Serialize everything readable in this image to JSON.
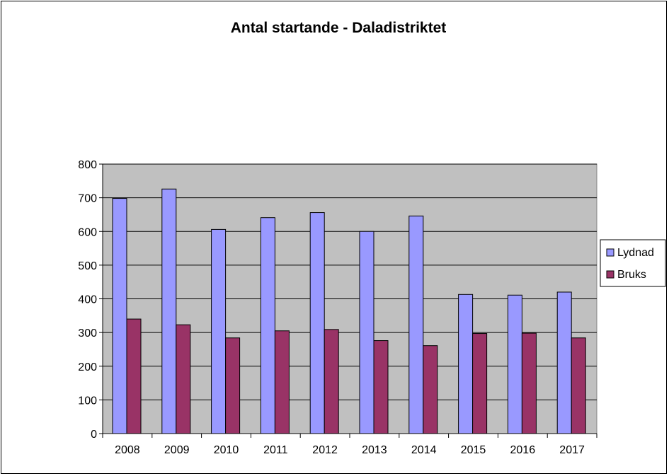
{
  "chart_data": {
    "type": "bar",
    "title": "Antal startande - Daladistriktet",
    "categories": [
      "2008",
      "2009",
      "2010",
      "2011",
      "2012",
      "2013",
      "2014",
      "2015",
      "2016",
      "2017"
    ],
    "series": [
      {
        "name": "Lydnad",
        "color": "#9999ff",
        "values": [
          698,
          726,
          606,
          641,
          656,
          600,
          646,
          413,
          411,
          420
        ]
      },
      {
        "name": "Bruks",
        "color": "#993366",
        "values": [
          340,
          323,
          284,
          305,
          309,
          276,
          261,
          297,
          298,
          284
        ]
      }
    ],
    "ylim": [
      0,
      800
    ],
    "yticks": [
      "0",
      "100",
      "200",
      "300",
      "400",
      "500",
      "600",
      "700",
      "800"
    ],
    "grid": true,
    "legend": "right",
    "plot_background": "#c0c0c0"
  }
}
